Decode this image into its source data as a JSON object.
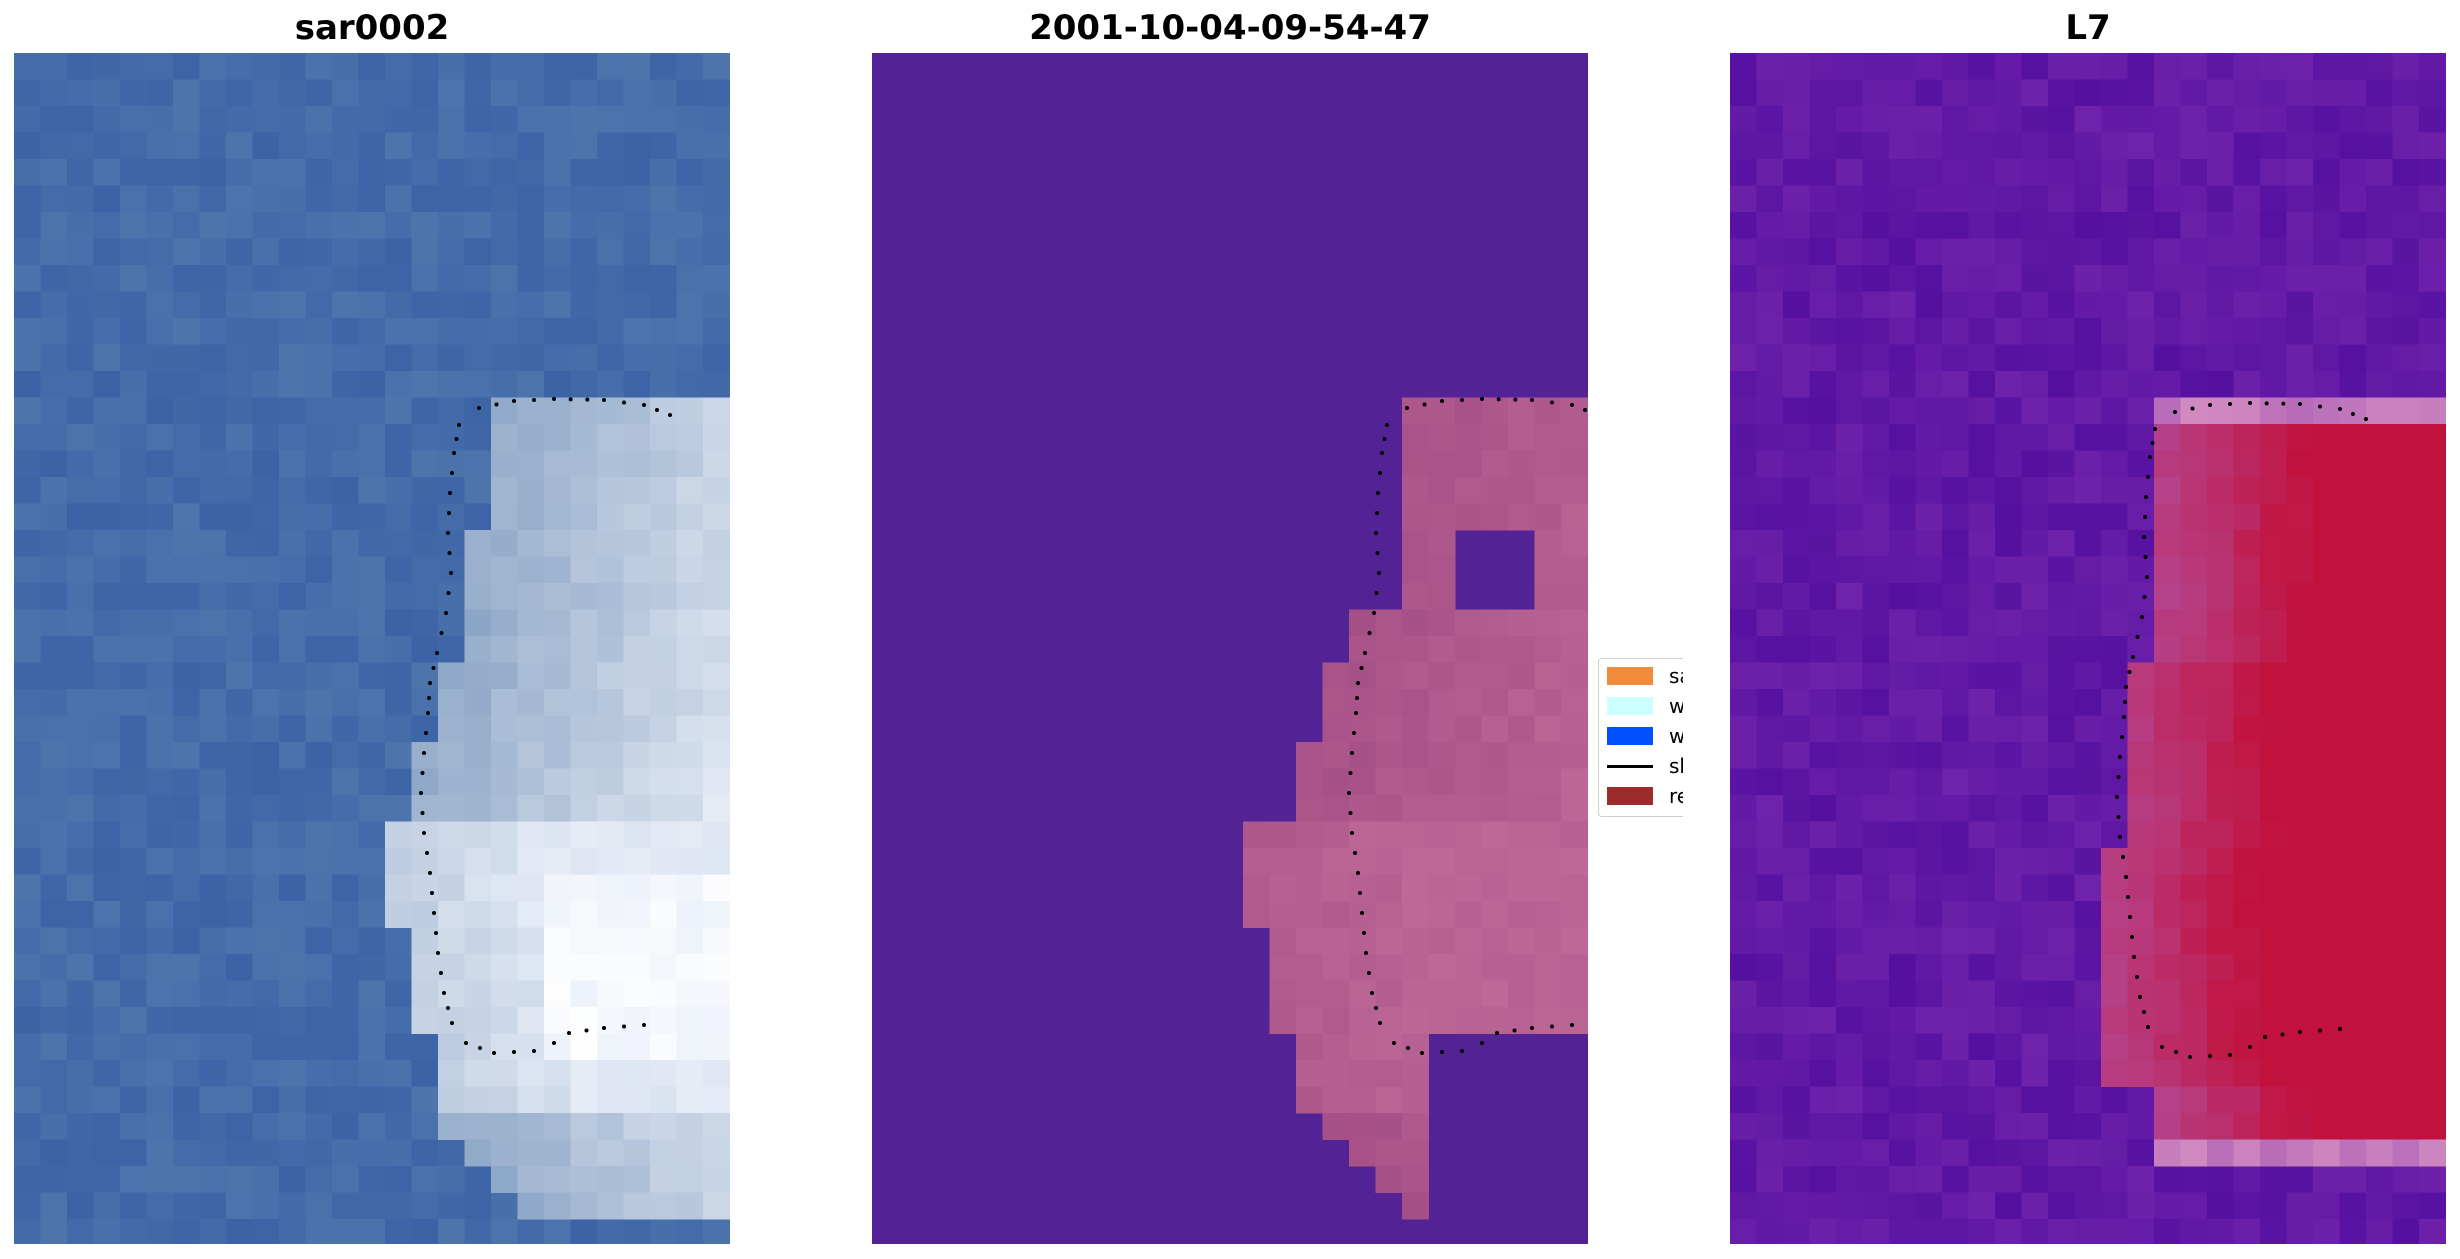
{
  "panels": {
    "left_title": "sar0002",
    "middle_title": "2001-10-04-09-54-47",
    "right_title": "L7"
  },
  "legend": {
    "items": [
      {
        "label": "sand",
        "color": "#f28c3a",
        "kind": "patch"
      },
      {
        "label": "whitew",
        "color": "#ccffff",
        "kind": "patch"
      },
      {
        "label": "water",
        "color": "#0050ff",
        "kind": "patch"
      },
      {
        "label": "shorel",
        "color": "#000000",
        "kind": "line"
      },
      {
        "label": "referen",
        "color": "#9e2b2b",
        "kind": "patch"
      }
    ]
  },
  "colors": {
    "rgb_water": "#4068a8",
    "class_background": "#532396",
    "class_whitewater": "#a2477f",
    "index_background": "#5c18a0",
    "index_high": "#c1123e"
  }
}
